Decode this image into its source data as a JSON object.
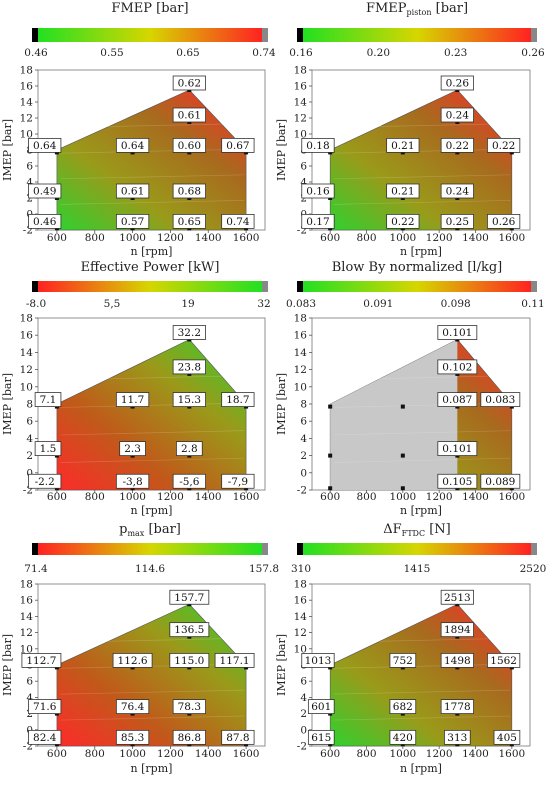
{
  "chart_data": [
    {
      "type": "heatmap",
      "title": "FMEP [bar]",
      "xlabel": "n [rpm]",
      "ylabel": "IMEP [bar]",
      "xlim": [
        500,
        1700
      ],
      "ylim": [
        -2,
        18
      ],
      "xticks": [
        "600",
        "800",
        "1000",
        "1200",
        "1400",
        "1600"
      ],
      "yticks": [
        "-2",
        "0",
        "2",
        "4",
        "6",
        "8",
        "10",
        "12",
        "14",
        "16",
        "18"
      ],
      "colorbar": {
        "ticks": [
          "0.46",
          "0.55",
          "0.65",
          "0.74"
        ],
        "colors": [
          "#000000",
          "#22e022",
          "#d6d600",
          "#ff2222",
          "#888888"
        ]
      },
      "colormap": "green-yellow-red",
      "boundary": [
        [
          600,
          -2
        ],
        [
          1600,
          -2
        ],
        [
          1600,
          8
        ],
        [
          1300,
          15.5
        ],
        [
          600,
          8
        ]
      ],
      "points": [
        {
          "x": 1300,
          "y": 15.5,
          "value": "0.62"
        },
        {
          "x": 1300,
          "y": 11.5,
          "value": "0.61"
        },
        {
          "x": 600,
          "y": 7.7,
          "value": "0.64"
        },
        {
          "x": 1000,
          "y": 7.7,
          "value": "0.64"
        },
        {
          "x": 1300,
          "y": 7.7,
          "value": "0.60"
        },
        {
          "x": 1600,
          "y": 7.7,
          "value": "0.67"
        },
        {
          "x": 600,
          "y": 2,
          "value": "0.49"
        },
        {
          "x": 1000,
          "y": 2,
          "value": "0.61"
        },
        {
          "x": 1300,
          "y": 2,
          "value": "0.68"
        },
        {
          "x": 600,
          "y": -1.8,
          "value": "0.46"
        },
        {
          "x": 1000,
          "y": -1.8,
          "value": "0.57"
        },
        {
          "x": 1300,
          "y": -1.8,
          "value": "0.65"
        },
        {
          "x": 1600,
          "y": -1.8,
          "value": "0.74"
        }
      ]
    },
    {
      "type": "heatmap",
      "title": "FMEP",
      "title_sub": "piston",
      "title_suffix": " [bar]",
      "xlabel": "n [rpm]",
      "ylabel": "IMEP [bar]",
      "xlim": [
        500,
        1700
      ],
      "ylim": [
        -2,
        18
      ],
      "xticks": [
        "600",
        "800",
        "1000",
        "1200",
        "1400",
        "1600"
      ],
      "yticks": [
        "-2",
        "0",
        "2",
        "4",
        "6",
        "8",
        "10",
        "12",
        "14",
        "16",
        "18"
      ],
      "colorbar": {
        "ticks": [
          "0.16",
          "0.20",
          "0.23",
          "0.26"
        ],
        "colors": [
          "#000000",
          "#22e022",
          "#d6d600",
          "#ff2222",
          "#888888"
        ]
      },
      "colormap": "green-yellow-red",
      "boundary": [
        [
          600,
          -2
        ],
        [
          1600,
          -2
        ],
        [
          1600,
          8
        ],
        [
          1300,
          15.5
        ],
        [
          600,
          8
        ]
      ],
      "points": [
        {
          "x": 1300,
          "y": 15.5,
          "value": "0.26"
        },
        {
          "x": 1300,
          "y": 11.5,
          "value": "0.24"
        },
        {
          "x": 600,
          "y": 7.7,
          "value": "0.18"
        },
        {
          "x": 1000,
          "y": 7.7,
          "value": "0.21"
        },
        {
          "x": 1300,
          "y": 7.7,
          "value": "0.22"
        },
        {
          "x": 1600,
          "y": 7.7,
          "value": "0.22"
        },
        {
          "x": 600,
          "y": 2,
          "value": "0.16"
        },
        {
          "x": 1000,
          "y": 2,
          "value": "0.21"
        },
        {
          "x": 1300,
          "y": 2,
          "value": "0.24"
        },
        {
          "x": 600,
          "y": -1.8,
          "value": "0.17"
        },
        {
          "x": 1000,
          "y": -1.8,
          "value": "0.22"
        },
        {
          "x": 1300,
          "y": -1.8,
          "value": "0.25"
        },
        {
          "x": 1600,
          "y": -1.8,
          "value": "0.26"
        }
      ]
    },
    {
      "type": "heatmap",
      "title": "Effective Power [kW]",
      "xlabel": "n [rpm]",
      "ylabel": "IMEP [bar]",
      "xlim": [
        500,
        1700
      ],
      "ylim": [
        -2,
        18
      ],
      "xticks": [
        "600",
        "800",
        "1000",
        "1200",
        "1400",
        "1600"
      ],
      "yticks": [
        "-2",
        "0",
        "2",
        "4",
        "6",
        "8",
        "10",
        "12",
        "14",
        "16",
        "18"
      ],
      "colorbar": {
        "ticks": [
          "-8.0",
          "5,5",
          "19",
          "32"
        ],
        "colors": [
          "#000000",
          "#ff2222",
          "#d6d600",
          "#22e022",
          "#888888"
        ]
      },
      "colormap": "red-yellow-green",
      "boundary": [
        [
          600,
          -2
        ],
        [
          1600,
          -2
        ],
        [
          1600,
          8
        ],
        [
          1300,
          15.5
        ],
        [
          600,
          8
        ]
      ],
      "points": [
        {
          "x": 1300,
          "y": 15.5,
          "value": "32.2"
        },
        {
          "x": 1300,
          "y": 11.5,
          "value": "23.8"
        },
        {
          "x": 600,
          "y": 7.7,
          "value": "7.1"
        },
        {
          "x": 1000,
          "y": 7.7,
          "value": "11.7"
        },
        {
          "x": 1300,
          "y": 7.7,
          "value": "15.3"
        },
        {
          "x": 1600,
          "y": 7.7,
          "value": "18.7"
        },
        {
          "x": 600,
          "y": 2,
          "value": "1.5"
        },
        {
          "x": 1000,
          "y": 2,
          "value": "2.3"
        },
        {
          "x": 1300,
          "y": 2,
          "value": "2.8"
        },
        {
          "x": 600,
          "y": -1.8,
          "value": "-2.2"
        },
        {
          "x": 1000,
          "y": -1.8,
          "value": "-3,8"
        },
        {
          "x": 1300,
          "y": -1.8,
          "value": "-5,6"
        },
        {
          "x": 1600,
          "y": -1.8,
          "value": "-7,9"
        }
      ]
    },
    {
      "type": "heatmap",
      "title": "Blow By normalized [l/kg]",
      "xlabel": "n [rpm]",
      "ylabel": "IMEP [bar]",
      "xlim": [
        500,
        1700
      ],
      "ylim": [
        -2,
        18
      ],
      "xticks": [
        "600",
        "800",
        "1000",
        "1200",
        "1400",
        "1600"
      ],
      "yticks": [
        "-2",
        "0",
        "2",
        "4",
        "6",
        "8",
        "10",
        "12",
        "14",
        "16",
        "18"
      ],
      "colorbar": {
        "ticks": [
          "0.083",
          "0.091",
          "0.098",
          "0.11"
        ],
        "colors": [
          "#000000",
          "#22e022",
          "#d6d600",
          "#ff2222",
          "#888888"
        ]
      },
      "colormap": "green-yellow-red",
      "boundary": [
        [
          600,
          -2
        ],
        [
          1600,
          -2
        ],
        [
          1600,
          8
        ],
        [
          1300,
          15.5
        ],
        [
          600,
          8
        ]
      ],
      "grey_region": [
        [
          600,
          -2
        ],
        [
          1300,
          -2
        ],
        [
          1300,
          15.5
        ],
        [
          600,
          8
        ]
      ],
      "points": [
        {
          "x": 1300,
          "y": 15.5,
          "value": "0.101"
        },
        {
          "x": 1300,
          "y": 11.5,
          "value": "0.102"
        },
        {
          "x": 1300,
          "y": 7.7,
          "value": "0.087"
        },
        {
          "x": 1600,
          "y": 7.7,
          "value": "0.083"
        },
        {
          "x": 1300,
          "y": 2,
          "value": "0.101"
        },
        {
          "x": 1300,
          "y": -1.8,
          "value": "0.105"
        },
        {
          "x": 1600,
          "y": -1.8,
          "value": "0.089"
        }
      ],
      "markers_only": [
        {
          "x": 600,
          "y": 7.7
        },
        {
          "x": 1000,
          "y": 7.7
        },
        {
          "x": 600,
          "y": 2
        },
        {
          "x": 1000,
          "y": 2
        },
        {
          "x": 600,
          "y": -1.8
        },
        {
          "x": 1000,
          "y": -1.8
        }
      ]
    },
    {
      "type": "heatmap",
      "title": "p",
      "title_sub": "max",
      "title_suffix": " [bar]",
      "xlabel": "n [rpm]",
      "ylabel": "IMEP [bar]",
      "xlim": [
        500,
        1700
      ],
      "ylim": [
        -2,
        18
      ],
      "xticks": [
        "600",
        "800",
        "1000",
        "1200",
        "1400",
        "1600"
      ],
      "yticks": [
        "-2",
        "0",
        "2",
        "4",
        "6",
        "8",
        "10",
        "12",
        "14",
        "16",
        "18"
      ],
      "colorbar": {
        "ticks": [
          "71.4",
          "114.6",
          "157.8"
        ],
        "colors": [
          "#000000",
          "#ff2222",
          "#d6d600",
          "#22e022",
          "#888888"
        ]
      },
      "colormap": "red-yellow-green",
      "boundary": [
        [
          600,
          -2
        ],
        [
          1600,
          -2
        ],
        [
          1600,
          8
        ],
        [
          1300,
          15.5
        ],
        [
          600,
          8
        ]
      ],
      "points": [
        {
          "x": 1300,
          "y": 15.5,
          "value": "157.7"
        },
        {
          "x": 1300,
          "y": 11.5,
          "value": "136.5"
        },
        {
          "x": 600,
          "y": 7.7,
          "value": "112.7"
        },
        {
          "x": 1000,
          "y": 7.7,
          "value": "112.6"
        },
        {
          "x": 1300,
          "y": 7.7,
          "value": "115.0"
        },
        {
          "x": 1600,
          "y": 7.7,
          "value": "117.1"
        },
        {
          "x": 600,
          "y": 2,
          "value": "71.6"
        },
        {
          "x": 1000,
          "y": 2,
          "value": "76.4"
        },
        {
          "x": 1300,
          "y": 2,
          "value": "78.3"
        },
        {
          "x": 600,
          "y": -1.8,
          "value": "82.4"
        },
        {
          "x": 1000,
          "y": -1.8,
          "value": "85.3"
        },
        {
          "x": 1300,
          "y": -1.8,
          "value": "86.8"
        },
        {
          "x": 1600,
          "y": -1.8,
          "value": "87.8"
        }
      ]
    },
    {
      "type": "heatmap",
      "title": "ΔF",
      "title_sub": "FTDC",
      "title_suffix": " [N]",
      "xlabel": "n [rpm]",
      "ylabel": "IMEP [bar]",
      "xlim": [
        500,
        1700
      ],
      "ylim": [
        -2,
        18
      ],
      "xticks": [
        "600",
        "800",
        "1000",
        "1200",
        "1400",
        "1600"
      ],
      "yticks": [
        "-2",
        "0",
        "2",
        "4",
        "6",
        "8",
        "10",
        "12",
        "14",
        "16",
        "18"
      ],
      "colorbar": {
        "ticks": [
          "310",
          "1415",
          "2520"
        ],
        "colors": [
          "#000000",
          "#22e022",
          "#d6d600",
          "#ff2222",
          "#888888"
        ]
      },
      "colormap": "green-yellow-red",
      "boundary": [
        [
          600,
          -2
        ],
        [
          1600,
          -2
        ],
        [
          1600,
          8
        ],
        [
          1300,
          15.5
        ],
        [
          600,
          8
        ]
      ],
      "points": [
        {
          "x": 1300,
          "y": 15.5,
          "value": "2513"
        },
        {
          "x": 1300,
          "y": 11.5,
          "value": "1894"
        },
        {
          "x": 600,
          "y": 7.7,
          "value": "1013"
        },
        {
          "x": 1000,
          "y": 7.7,
          "value": "752"
        },
        {
          "x": 1300,
          "y": 7.7,
          "value": "1498"
        },
        {
          "x": 1600,
          "y": 7.7,
          "value": "1562"
        },
        {
          "x": 600,
          "y": 2,
          "value": "601"
        },
        {
          "x": 1000,
          "y": 2,
          "value": "682"
        },
        {
          "x": 1300,
          "y": 2,
          "value": "1778"
        },
        {
          "x": 600,
          "y": -1.8,
          "value": "615"
        },
        {
          "x": 1000,
          "y": -1.8,
          "value": "420"
        },
        {
          "x": 1300,
          "y": -1.8,
          "value": "313"
        },
        {
          "x": 1600,
          "y": -1.8,
          "value": "405"
        }
      ]
    }
  ]
}
